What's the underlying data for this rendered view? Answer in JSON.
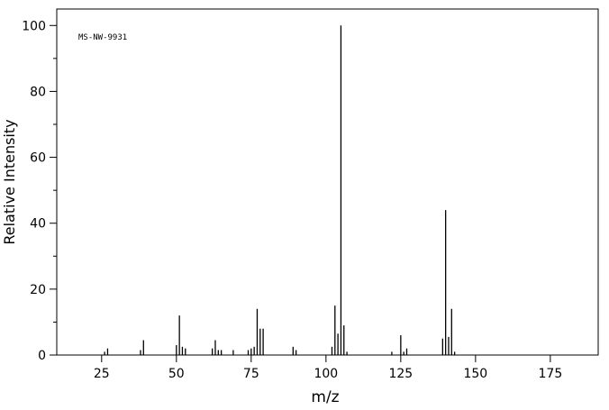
{
  "chart_data": {
    "type": "stem",
    "annotation": "MS-NW-9931",
    "xlabel": "m/z",
    "ylabel": "Relative Intensity",
    "x": [
      26,
      27,
      38,
      39,
      50,
      51,
      52,
      53,
      62,
      63,
      64,
      65,
      69,
      74,
      75,
      76,
      77,
      78,
      79,
      89,
      90,
      102,
      103,
      104,
      105,
      106,
      107,
      122,
      125,
      126,
      127,
      139,
      140,
      141,
      142,
      143
    ],
    "values": [
      1,
      2,
      1.5,
      4.5,
      3,
      12,
      2.5,
      2,
      2,
      4.5,
      1.5,
      1.5,
      1.5,
      1.5,
      2,
      2.5,
      14,
      8,
      8,
      2.5,
      1.5,
      2.5,
      15,
      6.5,
      100,
      9,
      1,
      1,
      6,
      1,
      2,
      5,
      44,
      5.5,
      14,
      1
    ],
    "color": "#000000",
    "xlim": [
      10,
      191
    ],
    "xticks": [
      25,
      50,
      75,
      100,
      125,
      150,
      175
    ],
    "ylim": [
      0,
      105
    ],
    "yticks": [
      0,
      20,
      40,
      60,
      80,
      100
    ],
    "yticks_minor": [
      10,
      30,
      50,
      70,
      90
    ]
  }
}
